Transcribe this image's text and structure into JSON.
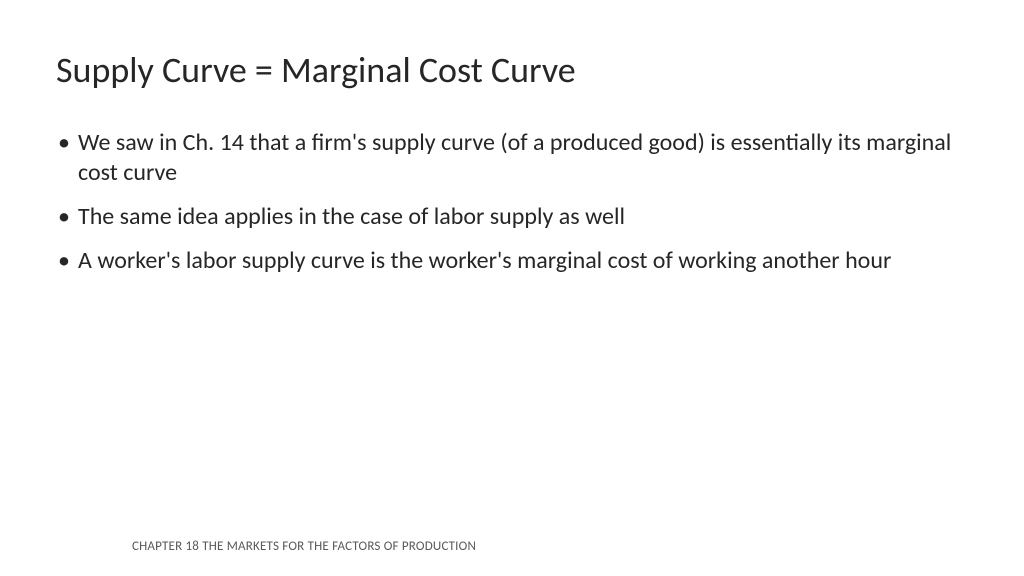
{
  "slide": {
    "title": "Supply Curve = Marginal Cost Curve",
    "bullets": [
      "We saw in Ch. 14 that a firm's supply curve (of a produced good) is essentially its marginal cost curve",
      "The same idea applies in the case of labor supply as well",
      "A worker's labor supply curve is the worker's marginal cost of working another hour"
    ],
    "footer": "CHAPTER 18 THE MARKETS FOR THE FACTORS OF PRODUCTION"
  },
  "colors": {
    "background": "#ffffff",
    "title_text": "#262626",
    "body_text": "#262626",
    "footer_text": "#595959"
  },
  "typography": {
    "title_fontsize": 36,
    "body_fontsize": 24,
    "footer_fontsize": 13,
    "font_family": "Calibri"
  }
}
